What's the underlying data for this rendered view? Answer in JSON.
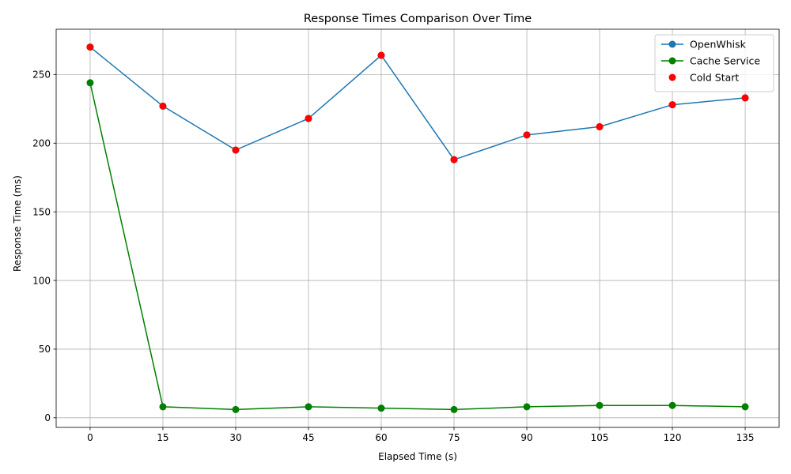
{
  "chart_data": {
    "type": "line",
    "title": "Response Times Comparison Over Time",
    "xlabel": "Elapsed Time (s)",
    "ylabel": "Response Time (ms)",
    "x": [
      0,
      15,
      30,
      45,
      60,
      75,
      90,
      105,
      120,
      135
    ],
    "xticks": [
      "0",
      "15",
      "30",
      "45",
      "60",
      "75",
      "90",
      "105",
      "120",
      "135"
    ],
    "yticks": [
      0,
      50,
      100,
      150,
      200,
      250
    ],
    "xlim": [
      -7,
      142
    ],
    "ylim": [
      -7,
      283
    ],
    "grid": true,
    "legend_position": "top-right",
    "series": [
      {
        "name": "OpenWhisk",
        "color": "#1f77b4",
        "marker": "circle",
        "line": true,
        "values": [
          270,
          227,
          195,
          218,
          264,
          188,
          206,
          212,
          228,
          233
        ]
      },
      {
        "name": "Cache Service",
        "color": "#008000",
        "marker": "circle",
        "line": true,
        "values": [
          244,
          8,
          6,
          8,
          7,
          6,
          8,
          9,
          9,
          8
        ]
      },
      {
        "name": "Cold Start",
        "color": "#ff0000",
        "marker": "circle",
        "line": false,
        "values": [
          270,
          227,
          195,
          218,
          264,
          188,
          206,
          212,
          228,
          233
        ]
      }
    ]
  }
}
